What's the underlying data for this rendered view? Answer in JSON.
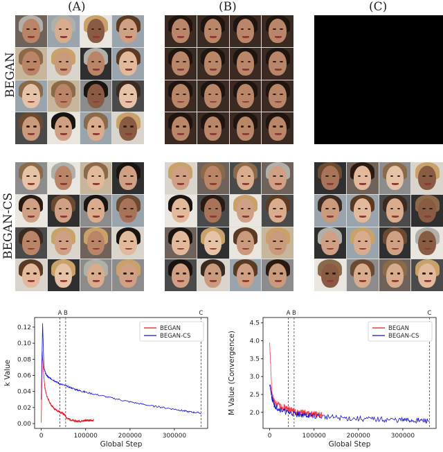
{
  "columns": [
    "(A)",
    "(B)",
    "(C)"
  ],
  "rows": [
    "BEGAN",
    "BEGAN-CS"
  ],
  "palettes": {
    "skin": [
      "#c99a7c",
      "#d8ac8c",
      "#b98566",
      "#e2b99a",
      "#a87459",
      "#cfa084",
      "#8a5b43",
      "#e6c2a6"
    ],
    "hair": [
      "#2a1a12",
      "#5a3a22",
      "#1a1411",
      "#8a6a48",
      "#c9a26a",
      "#3b2a20",
      "#6b4a32",
      "#b0b0a8"
    ],
    "bg": [
      "#d9d4cc",
      "#8c8c8c",
      "#4a4a4a",
      "#c7b59c",
      "#6e625a",
      "#e9e6e0",
      "#9aa4ad",
      "#2f2f2f"
    ]
  },
  "colors": {
    "began": "#e8111b",
    "began_cs": "#1111cc",
    "vline": "#555555"
  },
  "chart_data": [
    {
      "type": "line",
      "xlabel": "Global Step",
      "ylabel": "k Value",
      "xlim": [
        -15000,
        375000
      ],
      "ylim": [
        -0.006,
        0.132
      ],
      "xticks": [
        0,
        100000,
        200000,
        300000
      ],
      "xtick_labels": [
        "0",
        "100000",
        "200000",
        "300000"
      ],
      "yticks": [
        0.0,
        0.02,
        0.04,
        0.06,
        0.08,
        0.1,
        0.12
      ],
      "ytick_labels": [
        "0.00",
        "0.02",
        "0.04",
        "0.06",
        "0.08",
        "0.10",
        "0.12"
      ],
      "legend_position": "top-right",
      "markers": [
        {
          "label": "A",
          "x": 42000
        },
        {
          "label": "B",
          "x": 55000
        },
        {
          "label": "C",
          "x": 360000
        }
      ],
      "series": [
        {
          "name": "BEGAN",
          "color": "#e8111b",
          "x": [
            0,
            2000,
            5000,
            8000,
            12000,
            20000,
            30000,
            40000,
            50000,
            60000,
            70000,
            80000,
            90000,
            100000,
            110000,
            118000
          ],
          "y": [
            0.0,
            0.09,
            0.065,
            0.045,
            0.035,
            0.025,
            0.018,
            0.015,
            0.012,
            0.006,
            0.004,
            0.003,
            0.003,
            0.004,
            0.004,
            0.004
          ]
        },
        {
          "name": "BEGAN-CS",
          "color": "#1111cc",
          "x": [
            0,
            3000,
            6000,
            10000,
            15000,
            25000,
            40000,
            60000,
            80000,
            100000,
            150000,
            200000,
            250000,
            300000,
            330000,
            360000
          ],
          "y": [
            0.03,
            0.125,
            0.07,
            0.062,
            0.058,
            0.055,
            0.05,
            0.046,
            0.042,
            0.039,
            0.033,
            0.027,
            0.022,
            0.018,
            0.015,
            0.013
          ]
        }
      ]
    },
    {
      "type": "line",
      "xlabel": "Global Step",
      "ylabel": "M Value (Convergence)",
      "xlim": [
        -15000,
        375000
      ],
      "ylim": [
        1.55,
        4.65
      ],
      "xticks": [
        0,
        100000,
        200000,
        300000
      ],
      "xtick_labels": [
        "0",
        "100000",
        "200000",
        "300000"
      ],
      "yticks": [
        2.0,
        2.5,
        3.0,
        3.5,
        4.0,
        4.5
      ],
      "ytick_labels": [
        "2.0",
        "2.5",
        "3.0",
        "3.5",
        "4.0",
        "4.5"
      ],
      "legend_position": "top-right",
      "markers": [
        {
          "label": "A",
          "x": 42000
        },
        {
          "label": "B",
          "x": 55000
        },
        {
          "label": "C",
          "x": 360000
        }
      ],
      "series": [
        {
          "name": "BEGAN",
          "color": "#e8111b",
          "x": [
            0,
            5000,
            10000,
            20000,
            30000,
            40000,
            50000,
            60000,
            70000,
            80000,
            90000,
            100000,
            110000,
            118000
          ],
          "y": [
            3.9,
            2.5,
            2.3,
            2.2,
            2.15,
            2.1,
            2.05,
            2.0,
            2.0,
            1.98,
            1.95,
            1.95,
            1.93,
            1.93
          ]
        },
        {
          "name": "BEGAN-CS",
          "color": "#1111cc",
          "x": [
            0,
            5000,
            10000,
            20000,
            40000,
            60000,
            80000,
            100000,
            150000,
            200000,
            250000,
            300000,
            330000,
            360000
          ],
          "y": [
            2.8,
            2.4,
            2.2,
            2.1,
            2.0,
            1.95,
            1.92,
            1.9,
            1.85,
            1.82,
            1.8,
            1.78,
            1.77,
            1.76
          ]
        }
      ]
    }
  ]
}
